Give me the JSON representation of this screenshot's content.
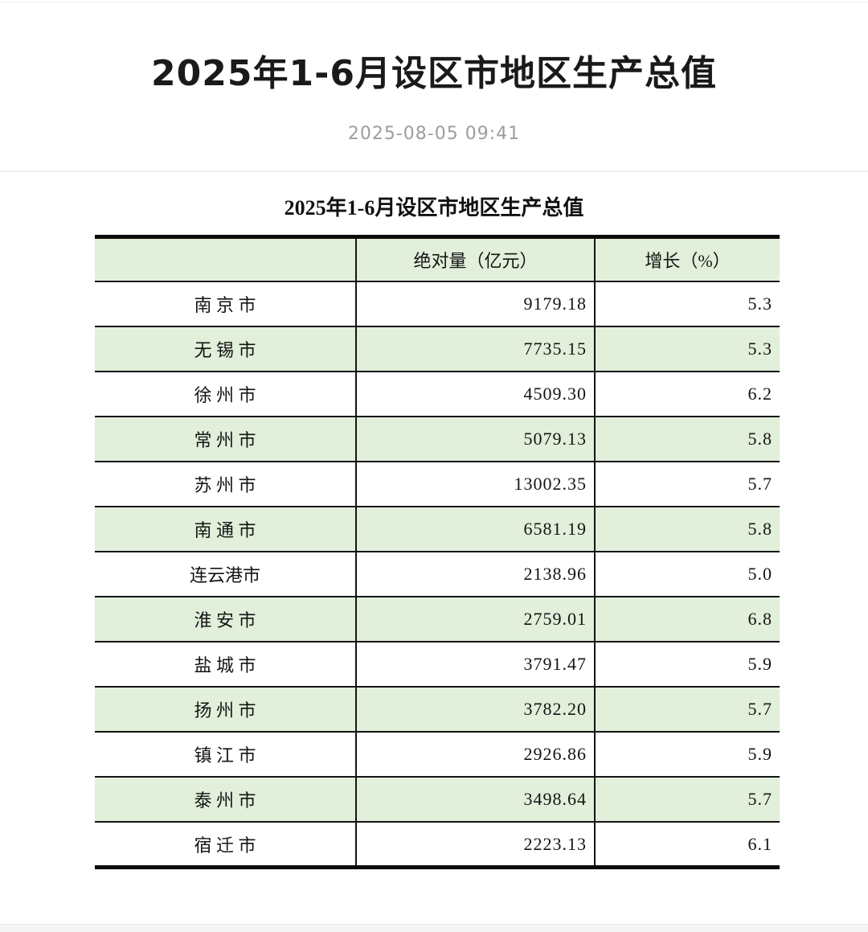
{
  "header": {
    "title": "2025年1-6月设区市地区生产总值",
    "date": "2025-08-05 09:41"
  },
  "table": {
    "title": "2025年1-6月设区市地区生产总值",
    "columns": [
      "",
      "绝对量（亿元）",
      "增长（%）"
    ],
    "rows": [
      {
        "city": "南 京 市",
        "value": "9179.18",
        "growth": "5.3"
      },
      {
        "city": "无 锡 市",
        "value": "7735.15",
        "growth": "5.3"
      },
      {
        "city": "徐 州 市",
        "value": "4509.30",
        "growth": "6.2"
      },
      {
        "city": "常 州 市",
        "value": "5079.13",
        "growth": "5.8"
      },
      {
        "city": "苏 州 市",
        "value": "13002.35",
        "growth": "5.7"
      },
      {
        "city": "南 通 市",
        "value": "6581.19",
        "growth": "5.8"
      },
      {
        "city": "连云港市",
        "value": "2138.96",
        "growth": "5.0"
      },
      {
        "city": "淮 安 市",
        "value": "2759.01",
        "growth": "6.8"
      },
      {
        "city": "盐 城 市",
        "value": "3791.47",
        "growth": "5.9"
      },
      {
        "city": "扬 州 市",
        "value": "3782.20",
        "growth": "5.7"
      },
      {
        "city": "镇 江 市",
        "value": "2926.86",
        "growth": "5.9"
      },
      {
        "city": "泰 州 市",
        "value": "3498.64",
        "growth": "5.7"
      },
      {
        "city": "宿 迁 市",
        "value": "2223.13",
        "growth": "6.1"
      }
    ],
    "colors": {
      "row_alt": "#e2efda",
      "border_dark": "#141414"
    }
  }
}
